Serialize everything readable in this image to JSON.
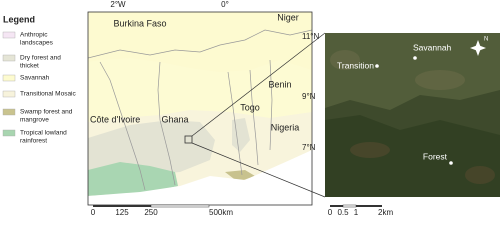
{
  "legend": {
    "title": "Legend",
    "items": [
      {
        "label": [
          "Anthropic",
          "landscapes"
        ]
      },
      {
        "label": [
          "Dry forest and",
          "thicket"
        ]
      },
      {
        "label": [
          "Savannah"
        ]
      },
      {
        "label": [
          "Transitional Mosaic"
        ]
      },
      {
        "label": [
          "Swamp forest and",
          "mangrove"
        ]
      },
      {
        "label": [
          "Tropical lowland",
          "rainforest"
        ]
      }
    ]
  },
  "map": {
    "top_labels": [
      "2°W",
      "0°"
    ],
    "right_labels": [
      "11°N",
      "9°N",
      "7°N"
    ],
    "countries": [
      "Burkina Faso",
      "Niger",
      "Benin",
      "Togo",
      "Nigeria",
      "Côte d'Ivoire",
      "Ghana"
    ],
    "scale": [
      "0",
      "125",
      "250",
      "500km"
    ]
  },
  "inset": {
    "sites": [
      "Transition",
      "Savannah",
      "Forest"
    ],
    "north": "N",
    "scale": [
      "0",
      "0.5",
      "1",
      "2km"
    ]
  }
}
